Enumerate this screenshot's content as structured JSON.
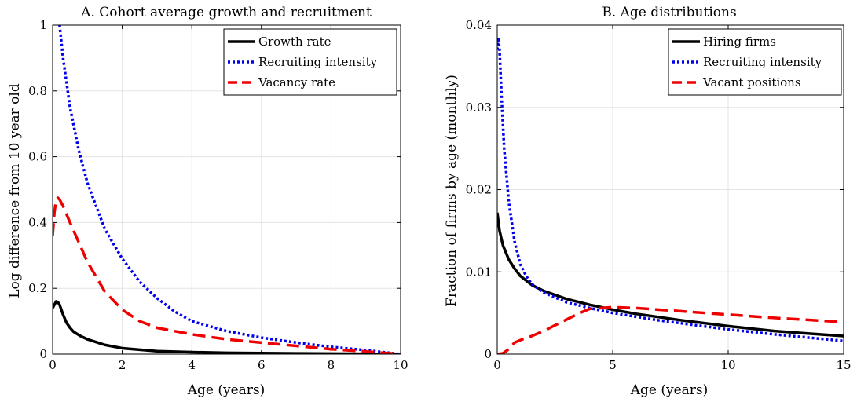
{
  "chart_data": [
    {
      "type": "line",
      "title": "A. Cohort average growth and recruitment",
      "xlabel": "Age (years)",
      "ylabel": "Log difference from 10 year old",
      "xlim": [
        0,
        10
      ],
      "ylim": [
        0,
        1
      ],
      "xticks": [
        0,
        2,
        4,
        6,
        8,
        10
      ],
      "yticks": [
        0,
        0.2,
        0.4,
        0.6,
        0.8,
        1
      ],
      "xtick_labels": [
        "0",
        "2",
        "4",
        "6",
        "8",
        "10"
      ],
      "ytick_labels": [
        "0",
        "0.2",
        "0.4",
        "0.6",
        "0.8",
        "1"
      ],
      "grid": true,
      "legend_position": "top-right",
      "series": [
        {
          "name": "Growth rate",
          "color": "#000000",
          "style": "solid",
          "x": [
            0,
            0.05,
            0.1,
            0.15,
            0.2,
            0.3,
            0.4,
            0.5,
            0.6,
            0.8,
            1,
            1.5,
            2,
            3,
            4,
            5,
            6,
            7,
            8,
            9,
            10
          ],
          "y": [
            0.14,
            0.15,
            0.16,
            0.158,
            0.15,
            0.12,
            0.095,
            0.08,
            0.068,
            0.055,
            0.045,
            0.028,
            0.018,
            0.009,
            0.006,
            0.004,
            0.003,
            0.002,
            0.0015,
            0.001,
            0
          ]
        },
        {
          "name": "Recruiting intensity",
          "color": "#0000ee",
          "style": "dotted",
          "x": [
            0.2,
            0.3,
            0.5,
            0.75,
            1,
            1.5,
            2,
            2.5,
            3,
            3.5,
            4,
            5,
            6,
            7,
            8,
            9,
            10
          ],
          "y": [
            1.0,
            0.9,
            0.75,
            0.62,
            0.52,
            0.38,
            0.29,
            0.22,
            0.17,
            0.13,
            0.1,
            0.07,
            0.05,
            0.035,
            0.022,
            0.012,
            0
          ]
        },
        {
          "name": "Vacancy rate",
          "color": "#ee0000",
          "style": "dashed",
          "x": [
            0,
            0.05,
            0.1,
            0.15,
            0.2,
            0.3,
            0.5,
            0.75,
            1,
            1.5,
            2,
            2.5,
            3,
            4,
            5,
            6,
            7,
            8,
            9,
            10
          ],
          "y": [
            0.36,
            0.43,
            0.47,
            0.475,
            0.47,
            0.45,
            0.4,
            0.34,
            0.28,
            0.19,
            0.135,
            0.1,
            0.08,
            0.06,
            0.045,
            0.035,
            0.025,
            0.015,
            0.008,
            0
          ]
        }
      ]
    },
    {
      "type": "line",
      "title": "B. Age distributions",
      "xlabel": "Age (years)",
      "ylabel": "Fraction of firms by age (monthly)",
      "xlim": [
        0,
        15
      ],
      "ylim": [
        0,
        0.04
      ],
      "xticks": [
        0,
        5,
        10,
        15
      ],
      "yticks": [
        0,
        0.01,
        0.02,
        0.03,
        0.04
      ],
      "xtick_labels": [
        "0",
        "5",
        "10",
        "15"
      ],
      "ytick_labels": [
        "0",
        "0.01",
        "0.02",
        "0.03",
        "0.04"
      ],
      "grid": true,
      "legend_position": "top-right",
      "series": [
        {
          "name": "Hiring firms",
          "color": "#000000",
          "style": "solid",
          "x": [
            0,
            0.1,
            0.25,
            0.5,
            0.75,
            1,
            1.5,
            2,
            3,
            4,
            5,
            6,
            8,
            10,
            12,
            15
          ],
          "y": [
            0.0172,
            0.015,
            0.0132,
            0.0115,
            0.0104,
            0.0095,
            0.0084,
            0.0077,
            0.0067,
            0.006,
            0.0054,
            0.0049,
            0.0041,
            0.0034,
            0.0028,
            0.0022
          ]
        },
        {
          "name": "Recruiting intensity",
          "color": "#0000ee",
          "style": "dotted",
          "x": [
            0,
            0.05,
            0.1,
            0.2,
            0.3,
            0.5,
            0.75,
            1,
            1.25,
            1.5,
            2,
            3,
            4,
            5,
            7,
            10,
            12,
            15
          ],
          "y": [
            0.037,
            0.0385,
            0.037,
            0.0305,
            0.025,
            0.0185,
            0.0137,
            0.0109,
            0.0095,
            0.0085,
            0.0075,
            0.0063,
            0.0056,
            0.005,
            0.0041,
            0.003,
            0.0024,
            0.0016
          ]
        },
        {
          "name": "Vacant positions",
          "color": "#ee0000",
          "style": "dashed",
          "x": [
            0,
            0.25,
            0.5,
            0.75,
            1,
            1.5,
            2,
            2.5,
            3,
            3.5,
            4,
            4.5,
            5,
            6,
            8,
            10,
            12,
            15
          ],
          "y": [
            0,
            0.0001,
            0.0006,
            0.0014,
            0.0017,
            0.0022,
            0.0028,
            0.0035,
            0.0042,
            0.0049,
            0.0055,
            0.0056,
            0.0057,
            0.0056,
            0.0052,
            0.0048,
            0.0044,
            0.0039
          ]
        }
      ]
    }
  ]
}
